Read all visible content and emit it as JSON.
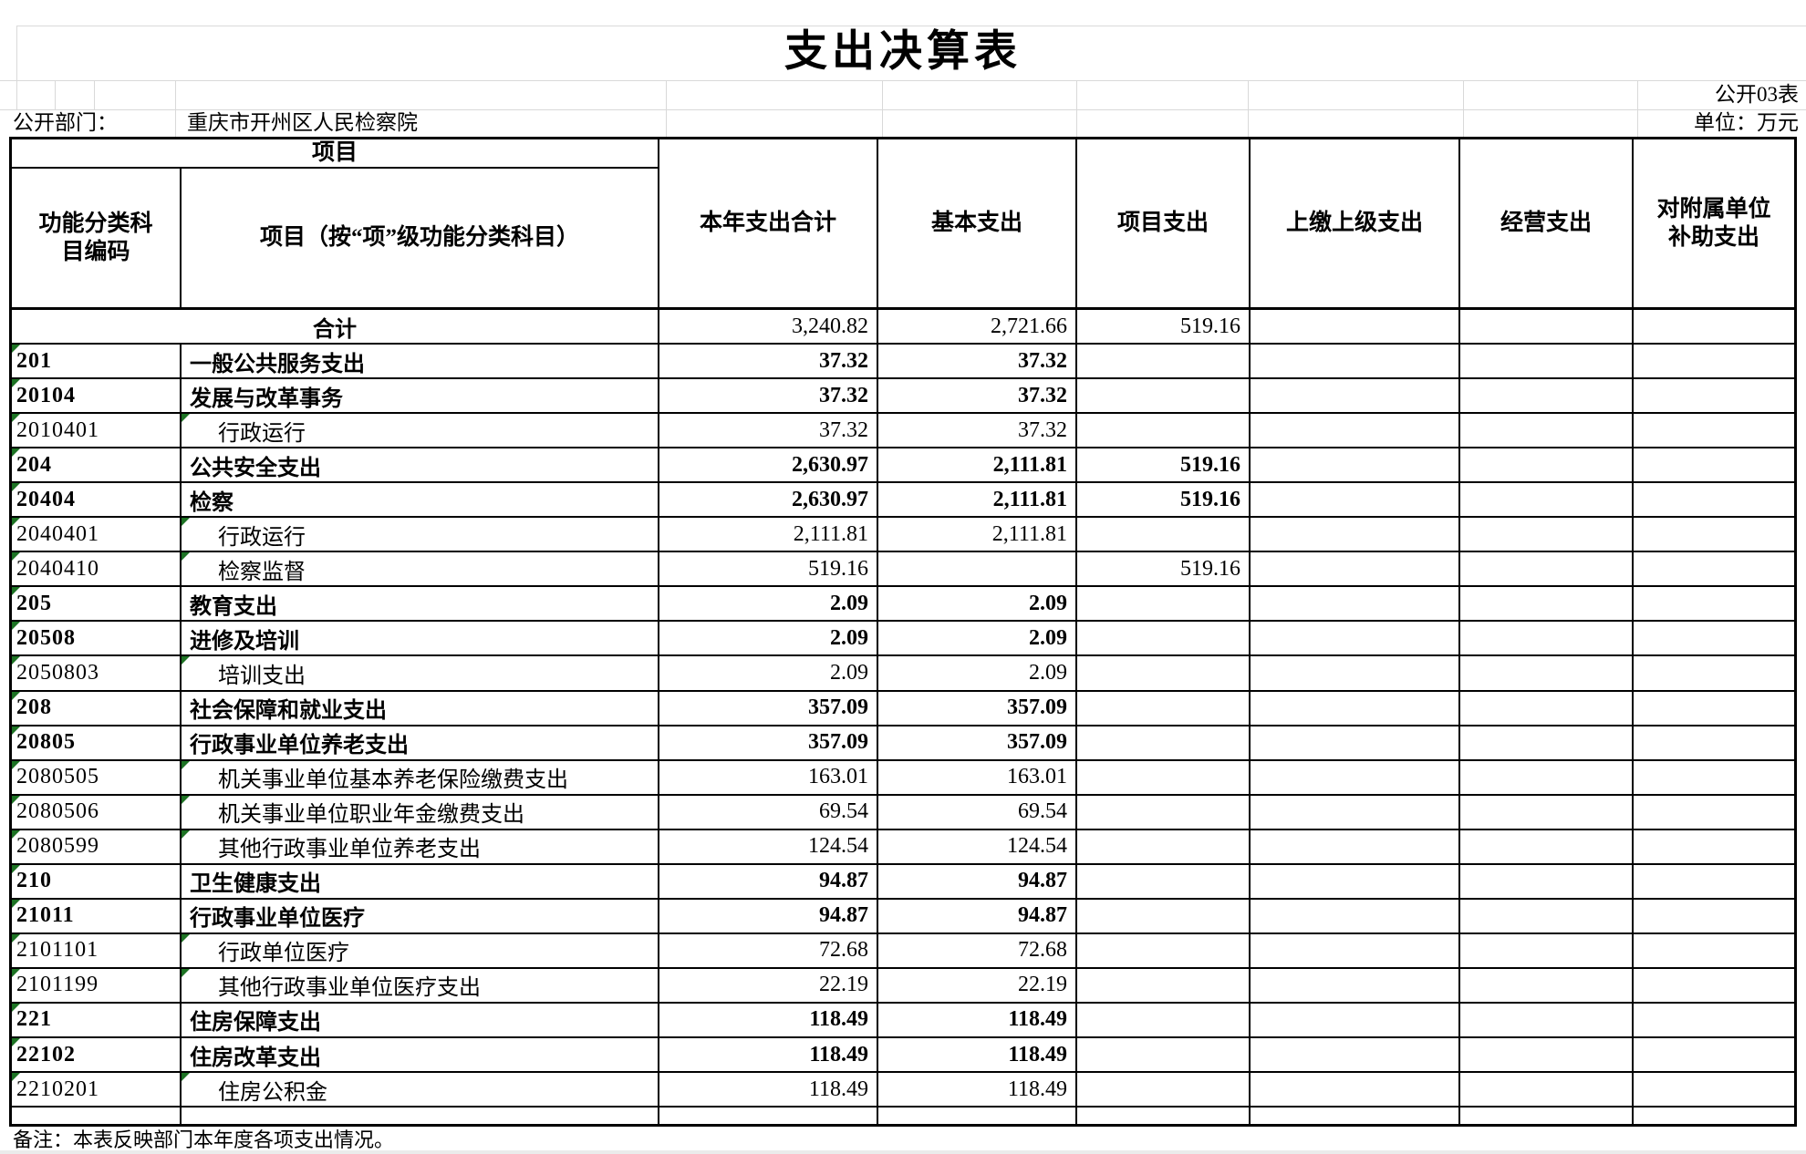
{
  "page": {
    "title": "支出决算表",
    "table_code": "公开03表",
    "department_label": "公开部门：",
    "department_value": "重庆市开州区人民检察院",
    "unit_label": "单位：万元",
    "note": "备注：本表反映部门本年度各项支出情况。"
  },
  "header": {
    "group_label": "项目",
    "col_code": "功能分类科\n目编码",
    "col_item": "项目（按“项”级功能分类科目）",
    "col_total": "本年支出合计",
    "col_basic": "基本支出",
    "col_project": "项目支出",
    "col_upper": "上缴上级支出",
    "col_operating": "经营支出",
    "col_subsidy": "对附属单位\n补助支出"
  },
  "colors": {
    "indicator_green": "#1d7324",
    "grid_gray": "#d9d9d9",
    "border_black": "#000000"
  },
  "rows": [
    {
      "level": "total",
      "code": "",
      "item": "合计",
      "total": "3,240.82",
      "basic": "2,721.66",
      "project": "519.16",
      "upper": "",
      "operating": "",
      "subsidy": ""
    },
    {
      "level": "class",
      "code": "201",
      "item": "一般公共服务支出",
      "total": "37.32",
      "basic": "37.32",
      "project": "",
      "upper": "",
      "operating": "",
      "subsidy": ""
    },
    {
      "level": "subclass",
      "code": "20104",
      "item": "发展与改革事务",
      "total": "37.32",
      "basic": "37.32",
      "project": "",
      "upper": "",
      "operating": "",
      "subsidy": ""
    },
    {
      "level": "item",
      "code": "2010401",
      "item": "行政运行",
      "total": "37.32",
      "basic": "37.32",
      "project": "",
      "upper": "",
      "operating": "",
      "subsidy": ""
    },
    {
      "level": "class",
      "code": "204",
      "item": "公共安全支出",
      "total": "2,630.97",
      "basic": "2,111.81",
      "project": "519.16",
      "upper": "",
      "operating": "",
      "subsidy": ""
    },
    {
      "level": "subclass",
      "code": "20404",
      "item": "检察",
      "total": "2,630.97",
      "basic": "2,111.81",
      "project": "519.16",
      "upper": "",
      "operating": "",
      "subsidy": ""
    },
    {
      "level": "item",
      "code": "2040401",
      "item": "行政运行",
      "total": "2,111.81",
      "basic": "2,111.81",
      "project": "",
      "upper": "",
      "operating": "",
      "subsidy": ""
    },
    {
      "level": "item",
      "code": "2040410",
      "item": "检察监督",
      "total": "519.16",
      "basic": "",
      "project": "519.16",
      "upper": "",
      "operating": "",
      "subsidy": ""
    },
    {
      "level": "class",
      "code": "205",
      "item": "教育支出",
      "total": "2.09",
      "basic": "2.09",
      "project": "",
      "upper": "",
      "operating": "",
      "subsidy": ""
    },
    {
      "level": "subclass",
      "code": "20508",
      "item": "进修及培训",
      "total": "2.09",
      "basic": "2.09",
      "project": "",
      "upper": "",
      "operating": "",
      "subsidy": ""
    },
    {
      "level": "item",
      "code": "2050803",
      "item": "培训支出",
      "total": "2.09",
      "basic": "2.09",
      "project": "",
      "upper": "",
      "operating": "",
      "subsidy": ""
    },
    {
      "level": "class",
      "code": "208",
      "item": "社会保障和就业支出",
      "total": "357.09",
      "basic": "357.09",
      "project": "",
      "upper": "",
      "operating": "",
      "subsidy": ""
    },
    {
      "level": "subclass",
      "code": "20805",
      "item": "行政事业单位养老支出",
      "total": "357.09",
      "basic": "357.09",
      "project": "",
      "upper": "",
      "operating": "",
      "subsidy": ""
    },
    {
      "level": "item",
      "code": "2080505",
      "item": "机关事业单位基本养老保险缴费支出",
      "total": "163.01",
      "basic": "163.01",
      "project": "",
      "upper": "",
      "operating": "",
      "subsidy": ""
    },
    {
      "level": "item",
      "code": "2080506",
      "item": "机关事业单位职业年金缴费支出",
      "total": "69.54",
      "basic": "69.54",
      "project": "",
      "upper": "",
      "operating": "",
      "subsidy": ""
    },
    {
      "level": "item",
      "code": "2080599",
      "item": "其他行政事业单位养老支出",
      "total": "124.54",
      "basic": "124.54",
      "project": "",
      "upper": "",
      "operating": "",
      "subsidy": ""
    },
    {
      "level": "class",
      "code": "210",
      "item": "卫生健康支出",
      "total": "94.87",
      "basic": "94.87",
      "project": "",
      "upper": "",
      "operating": "",
      "subsidy": ""
    },
    {
      "level": "subclass",
      "code": "21011",
      "item": "行政事业单位医疗",
      "total": "94.87",
      "basic": "94.87",
      "project": "",
      "upper": "",
      "operating": "",
      "subsidy": ""
    },
    {
      "level": "item",
      "code": "2101101",
      "item": "行政单位医疗",
      "total": "72.68",
      "basic": "72.68",
      "project": "",
      "upper": "",
      "operating": "",
      "subsidy": ""
    },
    {
      "level": "item",
      "code": "2101199",
      "item": "其他行政事业单位医疗支出",
      "total": "22.19",
      "basic": "22.19",
      "project": "",
      "upper": "",
      "operating": "",
      "subsidy": ""
    },
    {
      "level": "class",
      "code": "221",
      "item": "住房保障支出",
      "total": "118.49",
      "basic": "118.49",
      "project": "",
      "upper": "",
      "operating": "",
      "subsidy": ""
    },
    {
      "level": "subclass",
      "code": "22102",
      "item": "住房改革支出",
      "total": "118.49",
      "basic": "118.49",
      "project": "",
      "upper": "",
      "operating": "",
      "subsidy": ""
    },
    {
      "level": "item",
      "code": "2210201",
      "item": "住房公积金",
      "total": "118.49",
      "basic": "118.49",
      "project": "",
      "upper": "",
      "operating": "",
      "subsidy": ""
    },
    {
      "level": "empty",
      "code": "",
      "item": "",
      "total": "",
      "basic": "",
      "project": "",
      "upper": "",
      "operating": "",
      "subsidy": ""
    }
  ]
}
